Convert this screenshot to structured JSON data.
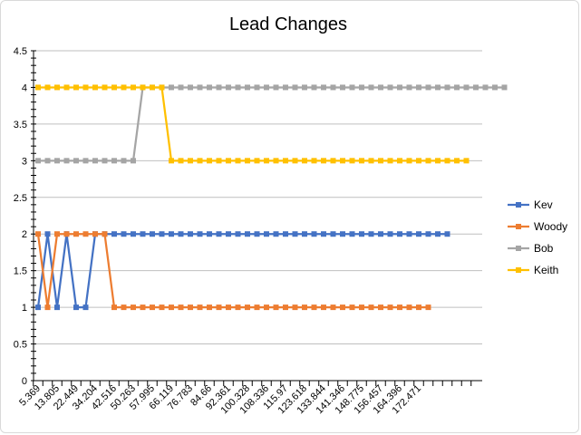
{
  "chart_data": {
    "type": "line",
    "title": "Lead Changes",
    "xlabel": "",
    "ylabel": "",
    "ylim": [
      0,
      4.5
    ],
    "y_ticks": [
      "0",
      "0.5",
      "1",
      "1.5",
      "2",
      "2.5",
      "3",
      "3.5",
      "4",
      "4.5"
    ],
    "grid": "horizontal",
    "legend_position": "right",
    "x_tick_labels": [
      "5.369",
      "13.805",
      "22.449",
      "34.204",
      "42.516",
      "50.263",
      "57.995",
      "66.119",
      "76.783",
      "84.66",
      "92.361",
      "100.328",
      "108.336",
      "115.97",
      "123.618",
      "133.844",
      "141.346",
      "148.775",
      "156.457",
      "164.396",
      "172.471"
    ],
    "series": [
      {
        "name": "Kev",
        "color": "#4472C4",
        "values": [
          1,
          2,
          1,
          2,
          1,
          1,
          2,
          2,
          2,
          2,
          2,
          2,
          2,
          2,
          2,
          2,
          2,
          2,
          2,
          2,
          2,
          2,
          2,
          2,
          2,
          2,
          2,
          2,
          2,
          2,
          2,
          2,
          2,
          2,
          2,
          2,
          2,
          2,
          2,
          2,
          2,
          2,
          2,
          2
        ]
      },
      {
        "name": "Woody",
        "color": "#ED7D31",
        "values": [
          2,
          1,
          2,
          2,
          2,
          2,
          2,
          2,
          1,
          1,
          1,
          1,
          1,
          1,
          1,
          1,
          1,
          1,
          1,
          1,
          1,
          1,
          1,
          1,
          1,
          1,
          1,
          1,
          1,
          1,
          1,
          1,
          1,
          1,
          1,
          1,
          1,
          1,
          1,
          1,
          1,
          1
        ]
      },
      {
        "name": "Bob",
        "color": "#A5A5A5",
        "values": [
          3,
          3,
          3,
          3,
          3,
          3,
          3,
          3,
          3,
          3,
          3,
          4,
          4,
          4,
          4,
          4,
          4,
          4,
          4,
          4,
          4,
          4,
          4,
          4,
          4,
          4,
          4,
          4,
          4,
          4,
          4,
          4,
          4,
          4,
          4,
          4,
          4,
          4,
          4,
          4,
          4,
          4,
          4,
          4,
          4,
          4,
          4,
          4,
          4,
          4
        ]
      },
      {
        "name": "Keith",
        "color": "#FFC000",
        "values": [
          4,
          4,
          4,
          4,
          4,
          4,
          4,
          4,
          4,
          4,
          4,
          4,
          4,
          4,
          3,
          3,
          3,
          3,
          3,
          3,
          3,
          3,
          3,
          3,
          3,
          3,
          3,
          3,
          3,
          3,
          3,
          3,
          3,
          3,
          3,
          3,
          3,
          3,
          3,
          3,
          3,
          3,
          3,
          3,
          3,
          3
        ]
      }
    ]
  }
}
